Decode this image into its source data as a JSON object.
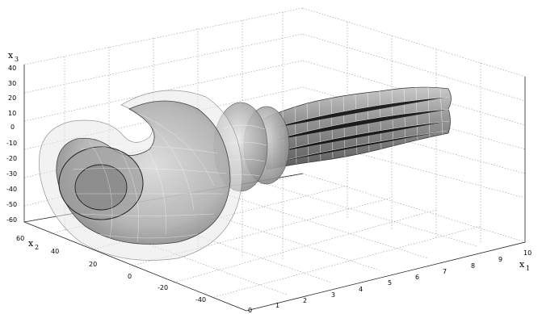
{
  "chart_data": {
    "type": "surface3d",
    "axes": {
      "x1": {
        "label": "x",
        "sub": "1",
        "ticks": [
          0,
          1,
          2,
          3,
          4,
          5,
          6,
          7,
          8,
          9,
          10
        ],
        "range": [
          0,
          10
        ]
      },
      "x2": {
        "label": "x",
        "sub": "2",
        "ticks": [
          60,
          40,
          20,
          0,
          -20,
          -40
        ],
        "range": [
          -50,
          60
        ]
      },
      "x3": {
        "label": "x",
        "sub": "3",
        "ticks": [
          40,
          30,
          20,
          10,
          0,
          -10,
          -20,
          -30,
          -40,
          -50,
          -60
        ],
        "range": [
          -65,
          45
        ]
      }
    },
    "grid": true,
    "colormap": "grayscale",
    "description_values": {
      "tube_start_x1": 10,
      "tube_end_x1": 2.5,
      "coil_center_x1": 0.8
    }
  }
}
